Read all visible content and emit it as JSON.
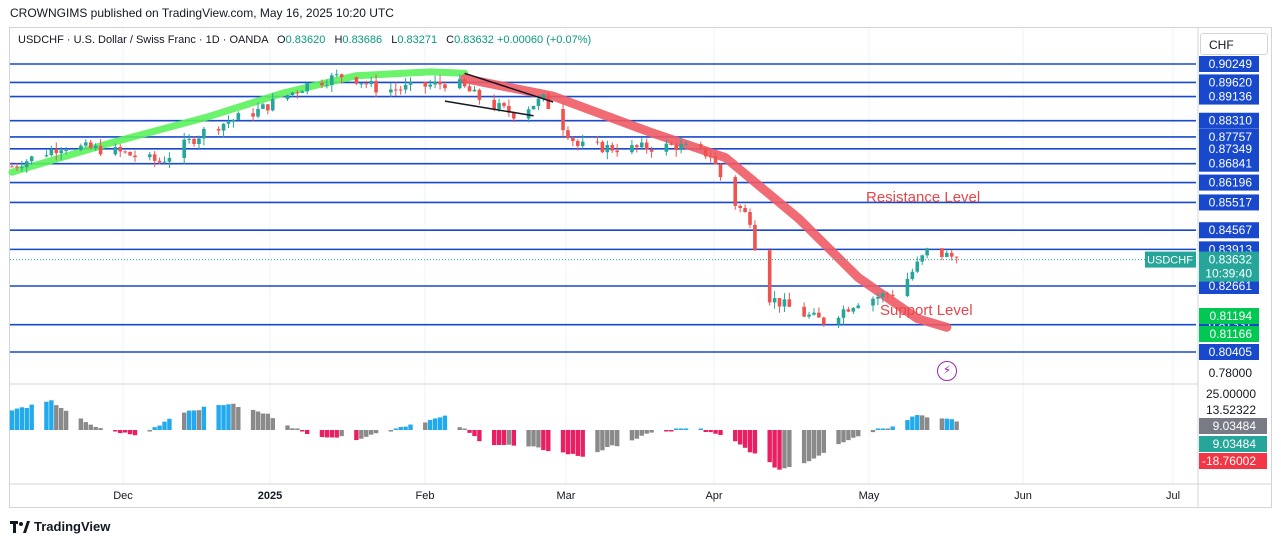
{
  "header": {
    "publisher": "CROWNGIMS published on TradingView.com, May 16, 2025 10:20 UTC"
  },
  "legend": {
    "symbol": "USDCHF · U.S. Dollar / Swiss Franc · 1D · OANDA",
    "open_label": "O",
    "open": "0.83620",
    "high_label": "H",
    "high": "0.83686",
    "low_label": "L",
    "low": "0.83271",
    "close_label": "C",
    "close": "0.83632",
    "change": "+0.00060 (+0.07%)"
  },
  "currency_button": "CHF",
  "annotations": {
    "resistance": "Resistance Level",
    "support": "Support Level"
  },
  "last_price": {
    "symbol_tag": "USDCHF",
    "price": "0.83632",
    "countdown": "10:39:40"
  },
  "branding": "TradingView",
  "colors": {
    "up": "#26a69a",
    "down": "#ef5350",
    "level_line": "#1848cc",
    "fast_ma": "#5bf25b",
    "slow_ma": "#ef5b66",
    "hist_blue": "#22aaee",
    "hist_gray": "#8a8a8a",
    "hist_pink": "#e91e63",
    "price_tag": "#26a69a",
    "osc_tag_gray": "#787b86",
    "osc_tag_teal": "#26a69a",
    "osc_tag_red": "#f23645"
  },
  "chart_data": {
    "type": "candlestick",
    "symbol": "USDCHF",
    "interval": "1D",
    "x_labels": [
      "Dec",
      "2025",
      "Feb",
      "Mar",
      "Apr",
      "May",
      "Jun",
      "Jul"
    ],
    "price_axis_ticks": [
      "0.78000"
    ],
    "horizontal_levels": [
      0.90249,
      0.8962,
      0.89136,
      0.8831,
      0.87757,
      0.87349,
      0.86841,
      0.86196,
      0.85517,
      0.84567,
      0.83913,
      0.82661,
      0.81337,
      0.80405
    ],
    "highlighted_levels": [
      {
        "value": "0.81194",
        "color": "#00c853"
      },
      {
        "value": "0.81166",
        "color": "#00c853"
      }
    ],
    "resistance_level": 0.83913,
    "support_level": 0.81337,
    "last_close": 0.83632,
    "anchor_points": [
      {
        "t": 0,
        "price": 0.8675
      },
      {
        "t": 10,
        "price": 0.8745
      },
      {
        "t": 20,
        "price": 0.873
      },
      {
        "t": 30,
        "price": 0.869
      },
      {
        "t": 40,
        "price": 0.8805
      },
      {
        "t": 50,
        "price": 0.8865
      },
      {
        "t": 60,
        "price": 0.8955
      },
      {
        "t": 68,
        "price": 0.899
      },
      {
        "t": 75,
        "price": 0.8935
      },
      {
        "t": 82,
        "price": 0.8945
      },
      {
        "t": 90,
        "price": 0.8965
      },
      {
        "t": 96,
        "price": 0.8895
      },
      {
        "t": 102,
        "price": 0.8855
      },
      {
        "t": 108,
        "price": 0.8905
      },
      {
        "t": 115,
        "price": 0.8745
      },
      {
        "t": 125,
        "price": 0.8735
      },
      {
        "t": 135,
        "price": 0.8745
      },
      {
        "t": 142,
        "price": 0.8715
      },
      {
        "t": 146,
        "price": 0.8565
      },
      {
        "t": 150,
        "price": 0.8495
      },
      {
        "t": 153,
        "price": 0.8235
      },
      {
        "t": 160,
        "price": 0.8175
      },
      {
        "t": 165,
        "price": 0.8145
      },
      {
        "t": 172,
        "price": 0.8215
      },
      {
        "t": 180,
        "price": 0.8245
      },
      {
        "t": 186,
        "price": 0.8385
      },
      {
        "t": 192,
        "price": 0.8363
      }
    ],
    "trendline": {
      "from": {
        "t": 92,
        "price": 0.8993
      },
      "to": {
        "t": 110,
        "price": 0.8895
      },
      "lower_from": {
        "t": 88,
        "price": 0.8898
      },
      "lower_to": {
        "t": 106,
        "price": 0.8848
      }
    },
    "slow_ma_points": [
      {
        "t": 92,
        "price": 0.8975
      },
      {
        "t": 110,
        "price": 0.8915
      },
      {
        "t": 130,
        "price": 0.879
      },
      {
        "t": 145,
        "price": 0.8705
      },
      {
        "t": 160,
        "price": 0.8495
      },
      {
        "t": 172,
        "price": 0.8295
      },
      {
        "t": 184,
        "price": 0.8155
      },
      {
        "t": 190,
        "price": 0.8125
      }
    ],
    "fast_ma_points": [
      {
        "t": 0,
        "price": 0.8655
      },
      {
        "t": 20,
        "price": 0.8755
      },
      {
        "t": 40,
        "price": 0.8845
      },
      {
        "t": 55,
        "price": 0.8925
      },
      {
        "t": 70,
        "price": 0.8985
      },
      {
        "t": 85,
        "price": 0.8998
      },
      {
        "t": 92,
        "price": 0.8993
      }
    ],
    "oscillator": {
      "upper": "25.00000",
      "level1": "13.52322",
      "level2": "9.03484",
      "level3": "9.03484",
      "lower": "-18.76002",
      "profile": [
        {
          "t": 0,
          "v": 9
        },
        {
          "t": 8,
          "v": 13
        },
        {
          "t": 16,
          "v": 2
        },
        {
          "t": 26,
          "v": -3
        },
        {
          "t": 34,
          "v": 8
        },
        {
          "t": 44,
          "v": 12
        },
        {
          "t": 52,
          "v": 7
        },
        {
          "t": 60,
          "v": -2
        },
        {
          "t": 70,
          "v": -4
        },
        {
          "t": 80,
          "v": 2
        },
        {
          "t": 88,
          "v": 6
        },
        {
          "t": 96,
          "v": -6
        },
        {
          "t": 106,
          "v": -8
        },
        {
          "t": 116,
          "v": -12
        },
        {
          "t": 124,
          "v": -6
        },
        {
          "t": 132,
          "v": 0
        },
        {
          "t": 140,
          "v": 0
        },
        {
          "t": 146,
          "v": -4
        },
        {
          "t": 156,
          "v": -18
        },
        {
          "t": 162,
          "v": -14
        },
        {
          "t": 168,
          "v": -6
        },
        {
          "t": 174,
          "v": -1
        },
        {
          "t": 178,
          "v": 1
        },
        {
          "t": 184,
          "v": 7
        },
        {
          "t": 192,
          "v": 4
        }
      ]
    }
  }
}
